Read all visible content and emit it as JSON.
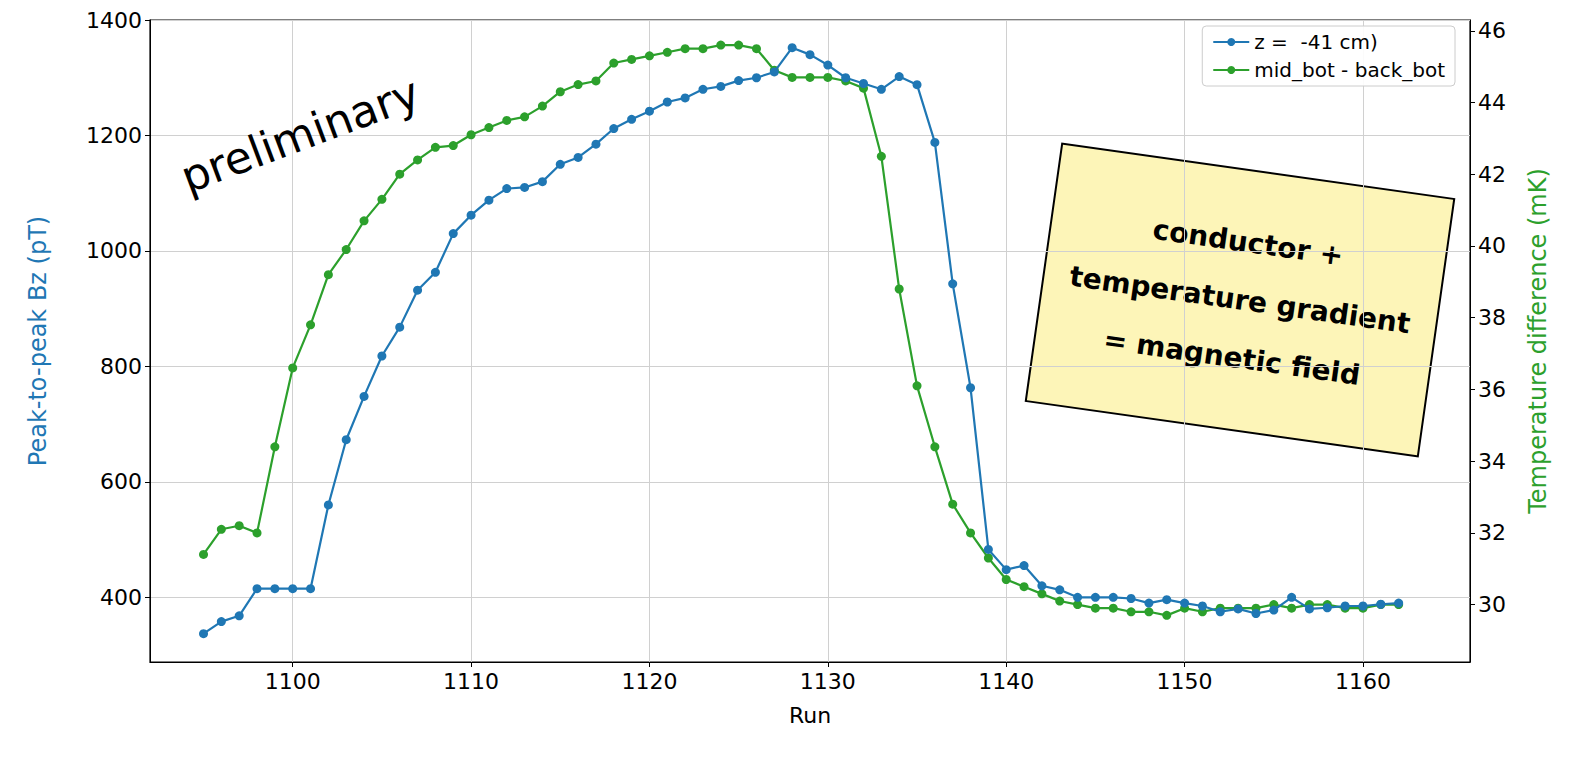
{
  "chart_data": {
    "type": "line",
    "x_label": "Run",
    "y_label": "Peak-to-peak Bz (pT)",
    "y2_label": "Temperature difference (mK)",
    "annotations": [
      "preliminary",
      "conductor +\ntemperature gradient\n= magnetic field"
    ],
    "x": [
      1095,
      1096,
      1097,
      1098,
      1099,
      1100,
      1101,
      1102,
      1103,
      1104,
      1105,
      1106,
      1107,
      1108,
      1109,
      1110,
      1111,
      1112,
      1113,
      1114,
      1115,
      1116,
      1117,
      1118,
      1119,
      1120,
      1121,
      1122,
      1123,
      1124,
      1125,
      1126,
      1127,
      1128,
      1129,
      1130,
      1131,
      1132,
      1133,
      1134,
      1135,
      1136,
      1137,
      1138,
      1139,
      1140,
      1141,
      1142,
      1143,
      1144,
      1145,
      1146,
      1147,
      1148,
      1149,
      1150,
      1151,
      1152,
      1153,
      1154,
      1155,
      1156,
      1157,
      1158,
      1159,
      1160,
      1161,
      1162
    ],
    "series": [
      {
        "name": "z =  -41 cm)",
        "color": "#1f77b4",
        "marker": "circle",
        "values": [
          337,
          358,
          368,
          415,
          415,
          415,
          415,
          560,
          673,
          748,
          818,
          868,
          932,
          963,
          1030,
          1062,
          1088,
          1108,
          1110,
          1120,
          1150,
          1162,
          1185,
          1212,
          1228,
          1242,
          1258,
          1265,
          1280,
          1285,
          1295,
          1300,
          1310,
          1352,
          1340,
          1322,
          1300,
          1290,
          1280,
          1302,
          1288,
          1188,
          943,
          763,
          483,
          448,
          455,
          420,
          413,
          400,
          400,
          400,
          398,
          390,
          396,
          390,
          385,
          375,
          380,
          372,
          378,
          400,
          380,
          382,
          385,
          385,
          388,
          390
        ]
      },
      {
        "name": "mid_bot - back_bot",
        "color": "#2ca02c",
        "marker": "circle",
        "axis": "y2",
        "values": [
          31.4,
          32.1,
          32.2,
          32.0,
          34.4,
          36.6,
          37.8,
          39.2,
          39.9,
          40.7,
          41.3,
          42.0,
          42.4,
          42.75,
          42.8,
          43.1,
          43.3,
          43.5,
          43.6,
          43.9,
          44.3,
          44.5,
          44.6,
          45.1,
          45.2,
          45.3,
          45.4,
          45.5,
          45.5,
          45.6,
          45.6,
          45.5,
          44.9,
          44.7,
          44.7,
          44.7,
          44.6,
          44.4,
          42.5,
          38.8,
          36.1,
          34.4,
          32.8,
          32.0,
          31.3,
          30.7,
          30.5,
          30.3,
          30.1,
          30.0,
          29.9,
          29.9,
          29.8,
          29.8,
          29.7,
          29.9,
          29.8,
          29.9,
          29.9,
          29.9,
          30.0,
          29.9,
          30.0,
          30.0,
          29.9,
          29.9,
          30.0,
          30.0
        ]
      }
    ],
    "xlim": [
      1092,
      1166
    ],
    "xticks": [
      1100,
      1110,
      1120,
      1130,
      1140,
      1150,
      1160
    ],
    "ylim": [
      288,
      1400
    ],
    "yticks": [
      400,
      600,
      800,
      1000,
      1200,
      1400
    ],
    "y2lim": [
      28.4,
      46.3
    ],
    "y2ticks": [
      30,
      32,
      34,
      36,
      38,
      40,
      42,
      44,
      46
    ],
    "grid": true,
    "legend": "upper right"
  }
}
